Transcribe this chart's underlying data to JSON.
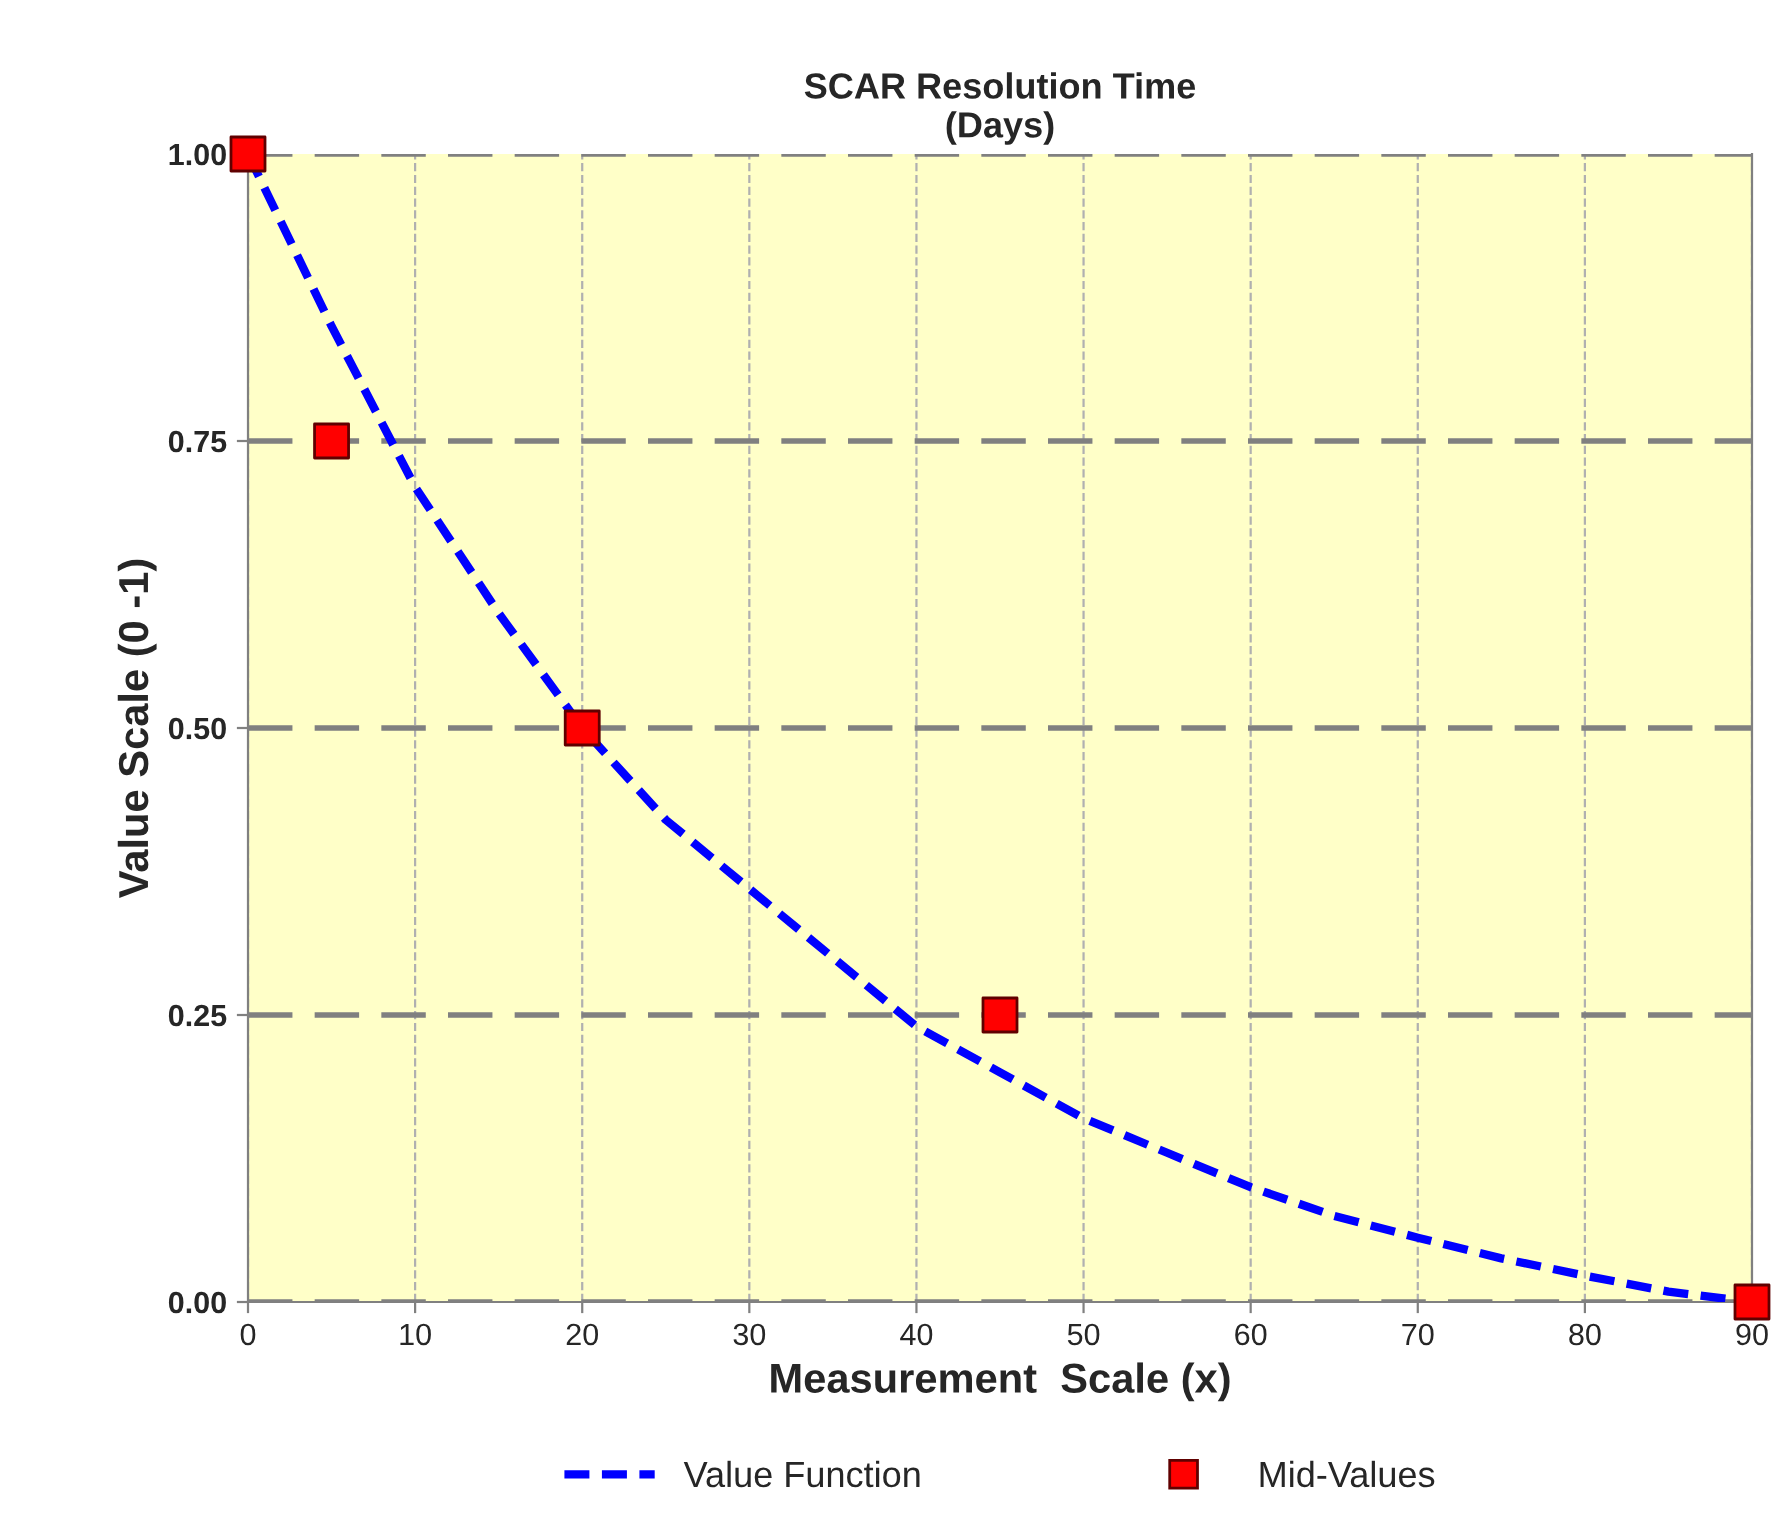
{
  "chart_data": {
    "type": "line",
    "title": "SCAR Resolution Time\n(Days)",
    "xlabel": "Measurement  Scale (x)",
    "ylabel": "Value Scale (0 -1)",
    "series": [
      {
        "name": "Value Function",
        "color": "#0000ff",
        "line_style": "dashed",
        "marker": "none",
        "x": [
          0,
          5,
          10,
          15,
          20,
          25,
          30,
          35,
          40,
          45,
          50,
          55,
          60,
          65,
          70,
          75,
          80,
          85,
          90
        ],
        "values": [
          1.0,
          0.85,
          0.71,
          0.6,
          0.5,
          0.42,
          0.36,
          0.3,
          0.24,
          0.2,
          0.16,
          0.13,
          0.1,
          0.075,
          0.056,
          0.038,
          0.023,
          0.009,
          0.0
        ]
      },
      {
        "name": "Mid-Values",
        "type": "scatter",
        "color": "#ff0000",
        "marker": "square",
        "x": [
          0,
          5,
          20,
          45,
          90
        ],
        "values": [
          1.0,
          0.75,
          0.5,
          0.25,
          0.0
        ]
      }
    ],
    "xlim": [
      0,
      90
    ],
    "xticks": [
      0,
      10,
      20,
      30,
      40,
      50,
      60,
      70,
      80,
      90
    ],
    "ylim": [
      0,
      1
    ],
    "yticks": [
      {
        "value": 0,
        "label": "0.00"
      },
      {
        "value": 0.25,
        "label": "0.25"
      },
      {
        "value": 0.5,
        "label": "0.50"
      },
      {
        "value": 0.75,
        "label": "0.75"
      },
      {
        "value": 1,
        "label": "1.00"
      }
    ],
    "grid": true,
    "legend": "bottom"
  }
}
